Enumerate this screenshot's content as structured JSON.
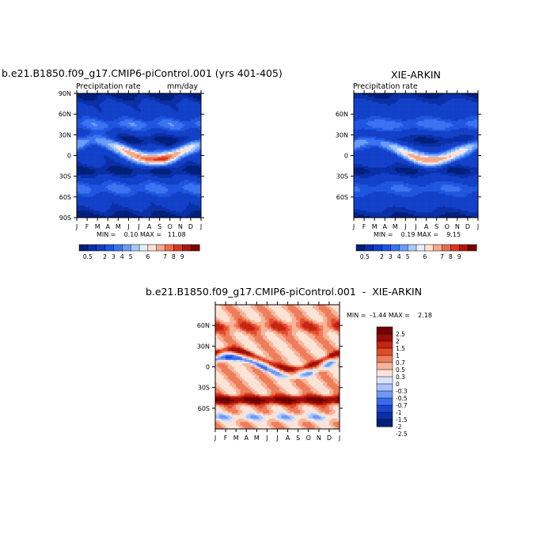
{
  "colors": {
    "seq_scale": [
      "#001f7a",
      "#0a2fa6",
      "#1240c8",
      "#1e55e0",
      "#3a72f0",
      "#6a9bf6",
      "#a9c8fb",
      "#e6eefc",
      "#fde2cf",
      "#f6a98a",
      "#ec6c4a",
      "#d8381f",
      "#b01507",
      "#7a0000"
    ],
    "div_scale": [
      "#001f7a",
      "#0a2fa6",
      "#1a45d0",
      "#3a6af0",
      "#6f98f6",
      "#a9c4fa",
      "#d6e4fc",
      "#fbe3d6",
      "#f6b49a",
      "#ee7d5a",
      "#e34a2a",
      "#c42412",
      "#9a0e04",
      "#700000"
    ]
  },
  "panels": {
    "left": {
      "title": "b.e21.B1850.f09_g17.CMIP6-piControl.001 (yrs 401-405)",
      "subtitle": "Precipitation rate",
      "units": "mm/day",
      "stats": "MIN =    0.10 MAX =   11.08"
    },
    "right": {
      "title": "XIE-ARKIN",
      "subtitle": "Precipitation rate",
      "stats": "MIN =    0.19 MAX =    9.15"
    },
    "bottom": {
      "title": "b.e21.B1850.f09_g17.CMIP6-piControl.001  -  XIE-ARKIN",
      "stats": "MIN =  -1.44 MAX =    2.18"
    },
    "month_labels": [
      "J",
      "F",
      "M",
      "A",
      "M",
      "J",
      "J",
      "A",
      "S",
      "O",
      "N",
      "D",
      "J"
    ],
    "lat_labels_full": [
      "90N",
      "60N",
      "30N",
      "0",
      "30S",
      "60S",
      "90S"
    ],
    "lat_labels_inner": [
      "60N",
      "30N",
      "0",
      "30S",
      "60S"
    ],
    "seq_colorbar_labels": [
      "0.5",
      "2",
      "3",
      "4",
      "5",
      "6",
      "7",
      "8",
      "9"
    ],
    "div_colorbar_labels": [
      "2.5",
      "2",
      "1.5",
      "1",
      "0.7",
      "0.5",
      "0.3",
      "0",
      "-0.3",
      "-0.5",
      "-0.7",
      "-1",
      "-1.5",
      "-2",
      "-2.5"
    ]
  },
  "chart_data": [
    {
      "type": "heatmap",
      "title": "b.e21.B1850.f09_g17.CMIP6-piControl.001 (yrs 401-405)",
      "subtitle": "Precipitation rate",
      "units": "mm/day",
      "x": [
        "J",
        "F",
        "M",
        "A",
        "M",
        "J",
        "J",
        "A",
        "S",
        "O",
        "N",
        "D",
        "J"
      ],
      "y_range": [
        -90,
        90
      ],
      "min": 0.1,
      "max": 11.08,
      "colorbar": [
        0.5,
        2,
        3,
        4,
        5,
        6,
        7,
        8,
        9
      ]
    },
    {
      "type": "heatmap",
      "title": "XIE-ARKIN",
      "subtitle": "Precipitation rate",
      "x": [
        "J",
        "F",
        "M",
        "A",
        "M",
        "J",
        "J",
        "A",
        "S",
        "O",
        "N",
        "D",
        "J"
      ],
      "y_range": [
        -90,
        90
      ],
      "min": 0.19,
      "max": 9.15,
      "colorbar": [
        0.5,
        2,
        3,
        4,
        5,
        6,
        7,
        8,
        9
      ]
    },
    {
      "type": "heatmap",
      "title": "b.e21.B1850.f09_g17.CMIP6-piControl.001  -  XIE-ARKIN",
      "x": [
        "J",
        "F",
        "M",
        "A",
        "M",
        "J",
        "J",
        "A",
        "S",
        "O",
        "N",
        "D",
        "J"
      ],
      "y_range": [
        -90,
        90
      ],
      "min": -1.44,
      "max": 2.18,
      "colorbar": [
        2.5,
        2,
        1.5,
        1,
        0.7,
        0.5,
        0.3,
        0,
        -0.3,
        -0.5,
        -0.7,
        -1,
        -1.5,
        -2,
        -2.5
      ]
    }
  ]
}
